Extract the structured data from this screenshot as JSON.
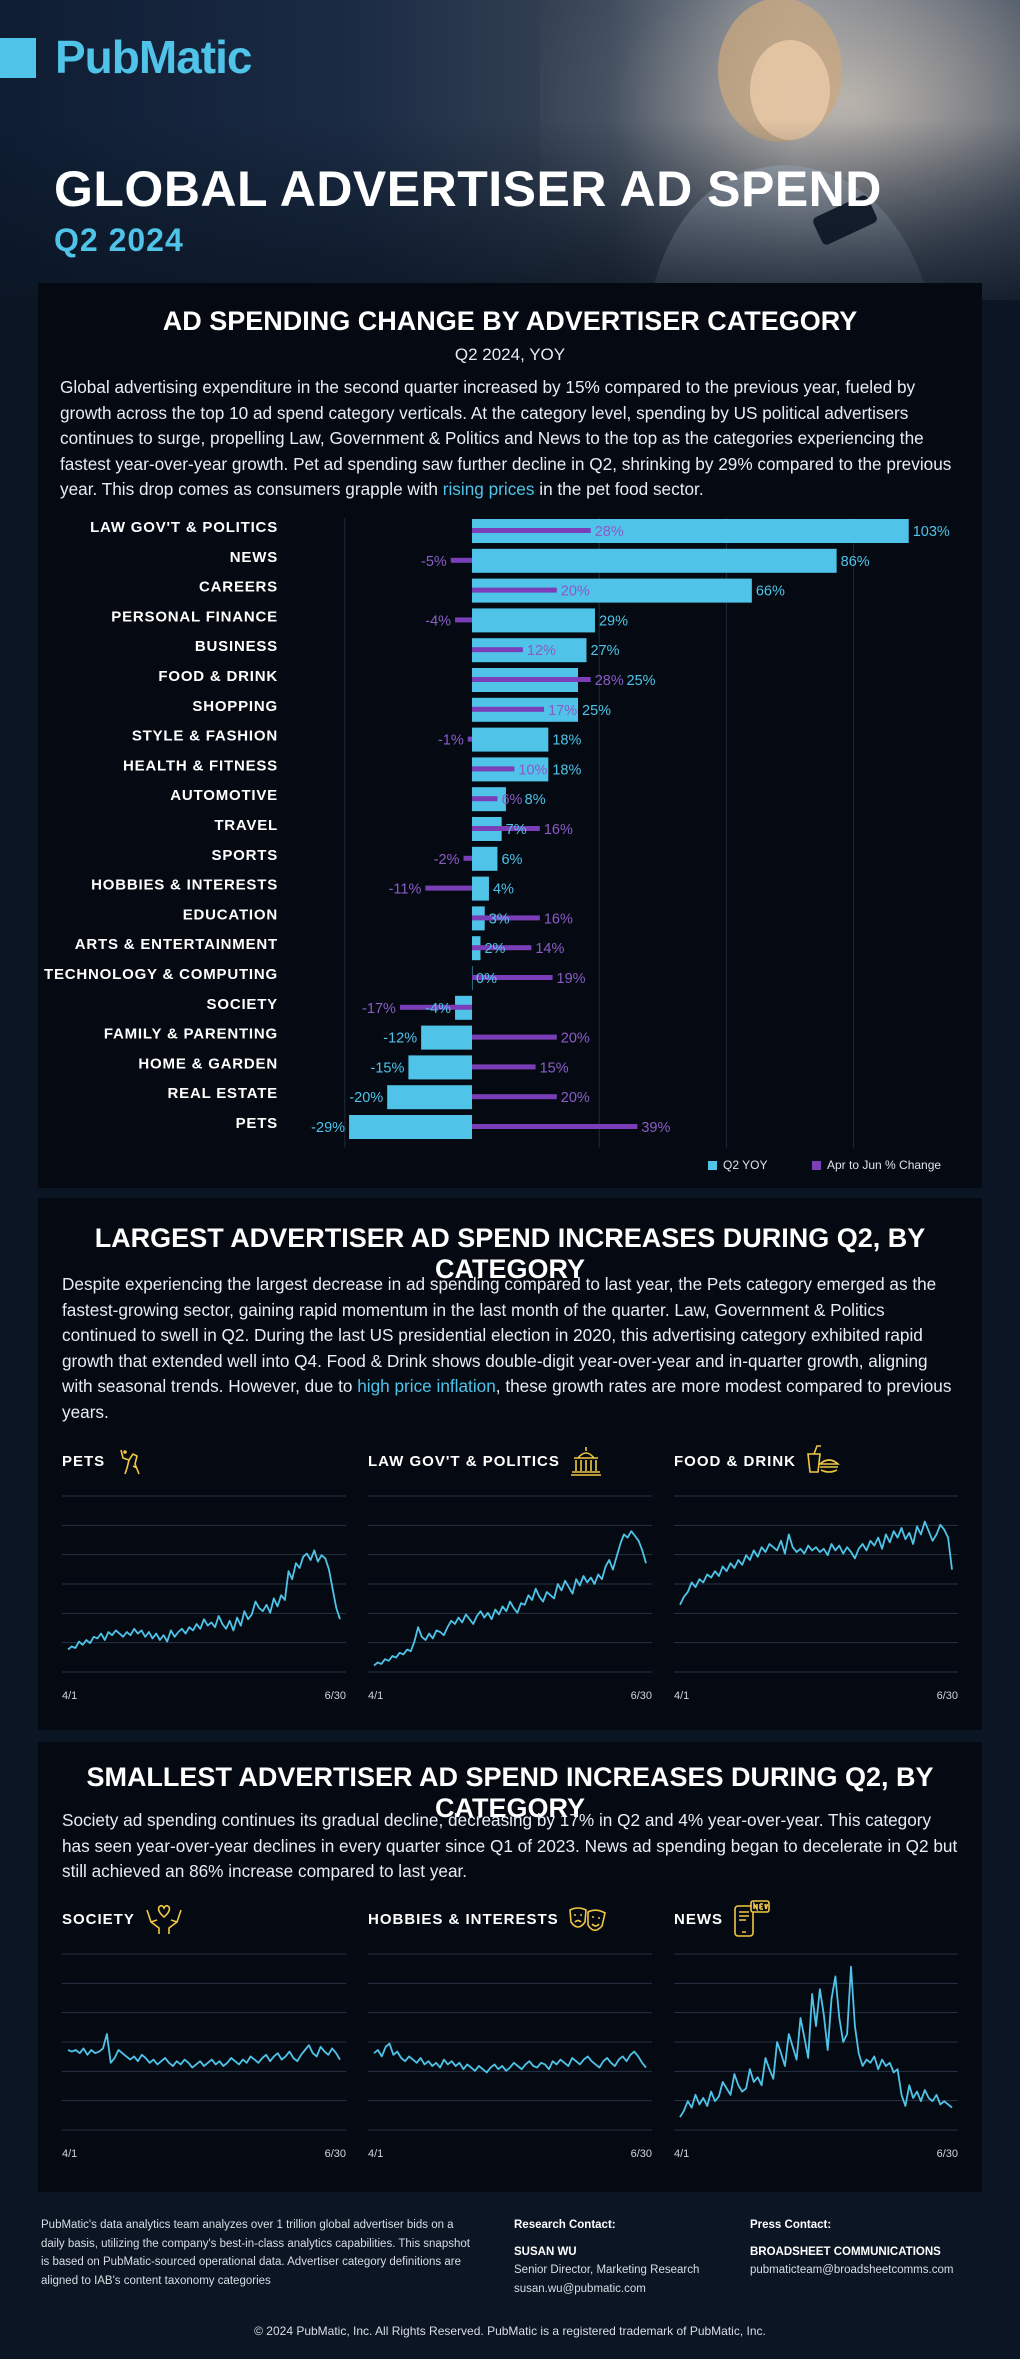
{
  "brand": {
    "logo": "PubMatic",
    "accent": "#4fc3e8",
    "purple": "#7a3fb8"
  },
  "hero": {
    "title": "GLOBAL ADVERTISER AD SPEND",
    "subtitle": "Q2 2024"
  },
  "section1": {
    "title": "AD SPENDING CHANGE BY ADVERTISER CATEGORY",
    "subtitle": "Q2 2024, YOY",
    "body_1": "Global advertising expenditure in the second quarter increased by 15% compared to the previous year, fueled by growth across the top 10 ad spend category verticals. At the category level, spending by US political advertisers continues to surge, propelling Law, Government & Politics and News to the top as the categories experiencing the fastest year-over-year growth. Pet ad spending saw further decline in Q2, shrinking by 29% compared to the previous year. This drop comes as consumers grapple with ",
    "body_link": "rising prices",
    "body_2": " in the pet food sector.",
    "legend_q2": "Q2 YOY",
    "legend_qoq": "Apr to Jun % Change"
  },
  "chart_data": [
    {
      "type": "bar",
      "orientation": "horizontal",
      "categories": [
        "LAW GOV'T & POLITICS",
        "NEWS",
        "CAREERS",
        "PERSONAL FINANCE",
        "BUSINESS",
        "FOOD & DRINK",
        "SHOPPING",
        "STYLE & FASHION",
        "HEALTH & FITNESS",
        "AUTOMOTIVE",
        "TRAVEL",
        "SPORTS",
        "HOBBIES & INTERESTS",
        "EDUCATION",
        "ARTS & ENTERTAINMENT",
        "TECHNOLOGY & COMPUTING",
        "SOCIETY",
        "FAMILY & PARENTING",
        "HOME & GARDEN",
        "REAL ESTATE",
        "PETS"
      ],
      "series": [
        {
          "name": "Q2 YOY",
          "color": "#4fc3e8",
          "values": [
            103,
            86,
            66,
            29,
            27,
            25,
            25,
            18,
            18,
            8,
            7,
            6,
            4,
            3,
            2,
            0,
            -4,
            -12,
            -15,
            -20,
            -29
          ]
        },
        {
          "name": "Apr to Jun % Change",
          "color": "#7a3fb8",
          "values": [
            28,
            -5,
            20,
            -4,
            12,
            28,
            17,
            -1,
            10,
            6,
            16,
            -2,
            -11,
            16,
            14,
            19,
            -17,
            20,
            15,
            20,
            39
          ]
        }
      ],
      "value_suffix": "%",
      "xlim": [
        -30,
        103
      ],
      "grid": true,
      "legend": "bottom-right"
    },
    {
      "type": "line",
      "title": "PETS",
      "x_labels": [
        "4/1",
        "6/30"
      ],
      "values": [
        14,
        16,
        15,
        19,
        17,
        20,
        18,
        22,
        21,
        24,
        20,
        25,
        23,
        26,
        24,
        22,
        25,
        23,
        27,
        24,
        26,
        22,
        25,
        21,
        24,
        20,
        23,
        19,
        26,
        22,
        25,
        27,
        24,
        28,
        26,
        30,
        27,
        33,
        29,
        31,
        28,
        35,
        30,
        27,
        32,
        26,
        34,
        29,
        38,
        33,
        36,
        44,
        40,
        38,
        42,
        37,
        46,
        41,
        48,
        45,
        63,
        58,
        68,
        65,
        72,
        74,
        70,
        76,
        69,
        73,
        71,
        64,
        52,
        40,
        33
      ]
    },
    {
      "type": "line",
      "title": "LAW GOV'T & POLITICS",
      "x_labels": [
        "4/1",
        "6/30"
      ],
      "values": [
        4,
        6,
        5,
        8,
        7,
        10,
        9,
        12,
        11,
        14,
        13,
        19,
        28,
        22,
        20,
        24,
        21,
        26,
        25,
        23,
        28,
        32,
        30,
        34,
        31,
        36,
        33,
        30,
        35,
        38,
        34,
        37,
        33,
        39,
        36,
        41,
        38,
        44,
        40,
        37,
        43,
        42,
        48,
        45,
        52,
        47,
        44,
        50,
        48,
        46,
        55,
        51,
        57,
        53,
        49,
        58,
        54,
        60,
        56,
        59,
        55,
        61,
        58,
        66,
        70,
        64,
        72,
        80,
        86,
        84,
        88,
        85,
        82,
        76,
        68
      ]
    },
    {
      "type": "line",
      "title": "FOOD & DRINK",
      "x_labels": [
        "4/1",
        "6/30"
      ],
      "values": [
        42,
        47,
        50,
        56,
        53,
        58,
        56,
        61,
        59,
        63,
        60,
        66,
        63,
        68,
        65,
        70,
        67,
        73,
        70,
        76,
        72,
        78,
        75,
        80,
        78,
        76,
        82,
        74,
        86,
        78,
        75,
        77,
        74,
        79,
        76,
        78,
        75,
        77,
        73,
        80,
        76,
        79,
        74,
        78,
        75,
        71,
        77,
        80,
        76,
        82,
        79,
        84,
        77,
        86,
        81,
        88,
        84,
        90,
        83,
        87,
        80,
        91,
        86,
        94,
        88,
        82,
        86,
        92,
        89,
        84,
        64
      ]
    },
    {
      "type": "line",
      "title": "SOCIETY",
      "x_labels": [
        "4/1",
        "6/30"
      ],
      "values": [
        50,
        49,
        50,
        48,
        51,
        47,
        50,
        48,
        49,
        51,
        60,
        42,
        45,
        50,
        48,
        46,
        44,
        46,
        43,
        47,
        45,
        42,
        44,
        41,
        43,
        45,
        42,
        40,
        43,
        41,
        44,
        42,
        39,
        41,
        43,
        40,
        42,
        44,
        41,
        43,
        40,
        42,
        45,
        43,
        41,
        44,
        42,
        46,
        44,
        42,
        45,
        47,
        43,
        46,
        48,
        44,
        46,
        49,
        45,
        43,
        47,
        50,
        53,
        48,
        46,
        52,
        49,
        47,
        51,
        48,
        44
      ]
    },
    {
      "type": "line",
      "title": "HOBBIES & INTERESTS",
      "x_labels": [
        "4/1",
        "6/30"
      ],
      "values": [
        48,
        50,
        46,
        52,
        54,
        47,
        49,
        45,
        43,
        46,
        44,
        42,
        45,
        41,
        43,
        40,
        42,
        39,
        44,
        41,
        43,
        40,
        42,
        38,
        41,
        39,
        37,
        40,
        38,
        36,
        39,
        41,
        38,
        40,
        37,
        39,
        42,
        40,
        38,
        41,
        43,
        40,
        39,
        42,
        41,
        38,
        43,
        41,
        44,
        42,
        40,
        45,
        43,
        41,
        44,
        46,
        43,
        41,
        39,
        43,
        45,
        42,
        40,
        44,
        46,
        43,
        47,
        49,
        46,
        42,
        39
      ]
    },
    {
      "type": "line",
      "title": "NEWS",
      "x_labels": [
        "4/1",
        "6/30"
      ],
      "values": [
        8,
        12,
        18,
        14,
        22,
        16,
        20,
        15,
        24,
        18,
        21,
        30,
        26,
        22,
        35,
        28,
        24,
        26,
        38,
        30,
        33,
        28,
        45,
        38,
        32,
        55,
        48,
        40,
        60,
        52,
        44,
        70,
        58,
        45,
        85,
        65,
        88,
        72,
        50,
        82,
        96,
        70,
        55,
        60,
        102,
        65,
        48,
        40,
        44,
        42,
        46,
        38,
        44,
        40,
        42,
        36,
        38,
        22,
        15,
        28,
        20,
        24,
        18,
        25,
        20,
        18,
        22,
        16,
        18,
        16,
        14
      ]
    }
  ],
  "section2": {
    "title": "LARGEST ADVERTISER AD SPEND INCREASES DURING Q2, BY CATEGORY",
    "body_1": "Despite experiencing the largest decrease in ad spending compared to last year, the Pets category emerged as the fastest-growing sector, gaining rapid momentum in the last month of the quarter. Law, Government & Politics continued to swell in Q2. During the last US presidential election in 2020, this advertising category exhibited rapid growth that extended well into Q4. Food & Drink shows double-digit year-over-year and in-quarter growth, aligning with seasonal trends. However, due to ",
    "body_link": "high price inflation",
    "body_2": ", these growth rates are more modest compared to previous years.",
    "charts": [
      {
        "name": "PETS",
        "icon": "dog-icon",
        "x_start": "4/1",
        "x_end": "6/30"
      },
      {
        "name": "LAW GOV'T & POLITICS",
        "icon": "capitol-icon",
        "x_start": "4/1",
        "x_end": "6/30"
      },
      {
        "name": "FOOD & DRINK",
        "icon": "food-drink-icon",
        "x_start": "4/1",
        "x_end": "6/30"
      }
    ]
  },
  "section3": {
    "title": "SMALLEST ADVERTISER AD SPEND INCREASES DURING Q2, BY CATEGORY",
    "body": "Society ad spending continues its gradual decline, decreasing by 17% in Q2 and 4% year-over-year. This category has seen year-over-year declines in every quarter since Q1 of 2023. News ad spending began to decelerate in Q2 but still achieved an 86% increase compared to last year.",
    "charts": [
      {
        "name": "SOCIETY",
        "icon": "hands-heart-icon",
        "x_start": "4/1",
        "x_end": "6/30"
      },
      {
        "name": "HOBBIES & INTERESTS",
        "icon": "theater-masks-icon",
        "x_start": "4/1",
        "x_end": "6/30"
      },
      {
        "name": "NEWS",
        "icon": "phone-news-icon",
        "x_start": "4/1",
        "x_end": "6/30"
      }
    ]
  },
  "footer": {
    "about": "PubMatic's data analytics team analyzes over 1 trillion global advertiser bids on a daily basis, utilizing the company's best-in-class analytics capabilities. This snapshot is based on PubMatic-sourced operational data. Advertiser category definitions are aligned to IAB's content taxonomy categories",
    "research_heading": "Research Contact:",
    "research_name": "SUSAN WU",
    "research_role": "Senior Director, Marketing Research",
    "research_email": "susan.wu@pubmatic.com",
    "press_heading": "Press Contact:",
    "press_name": "BROADSHEET COMMUNICATIONS",
    "press_email": "pubmaticteam@broadsheetcomms.com",
    "copyright": "© 2024 PubMatic, Inc. All Rights Reserved. PubMatic is a registered trademark of PubMatic, Inc."
  }
}
